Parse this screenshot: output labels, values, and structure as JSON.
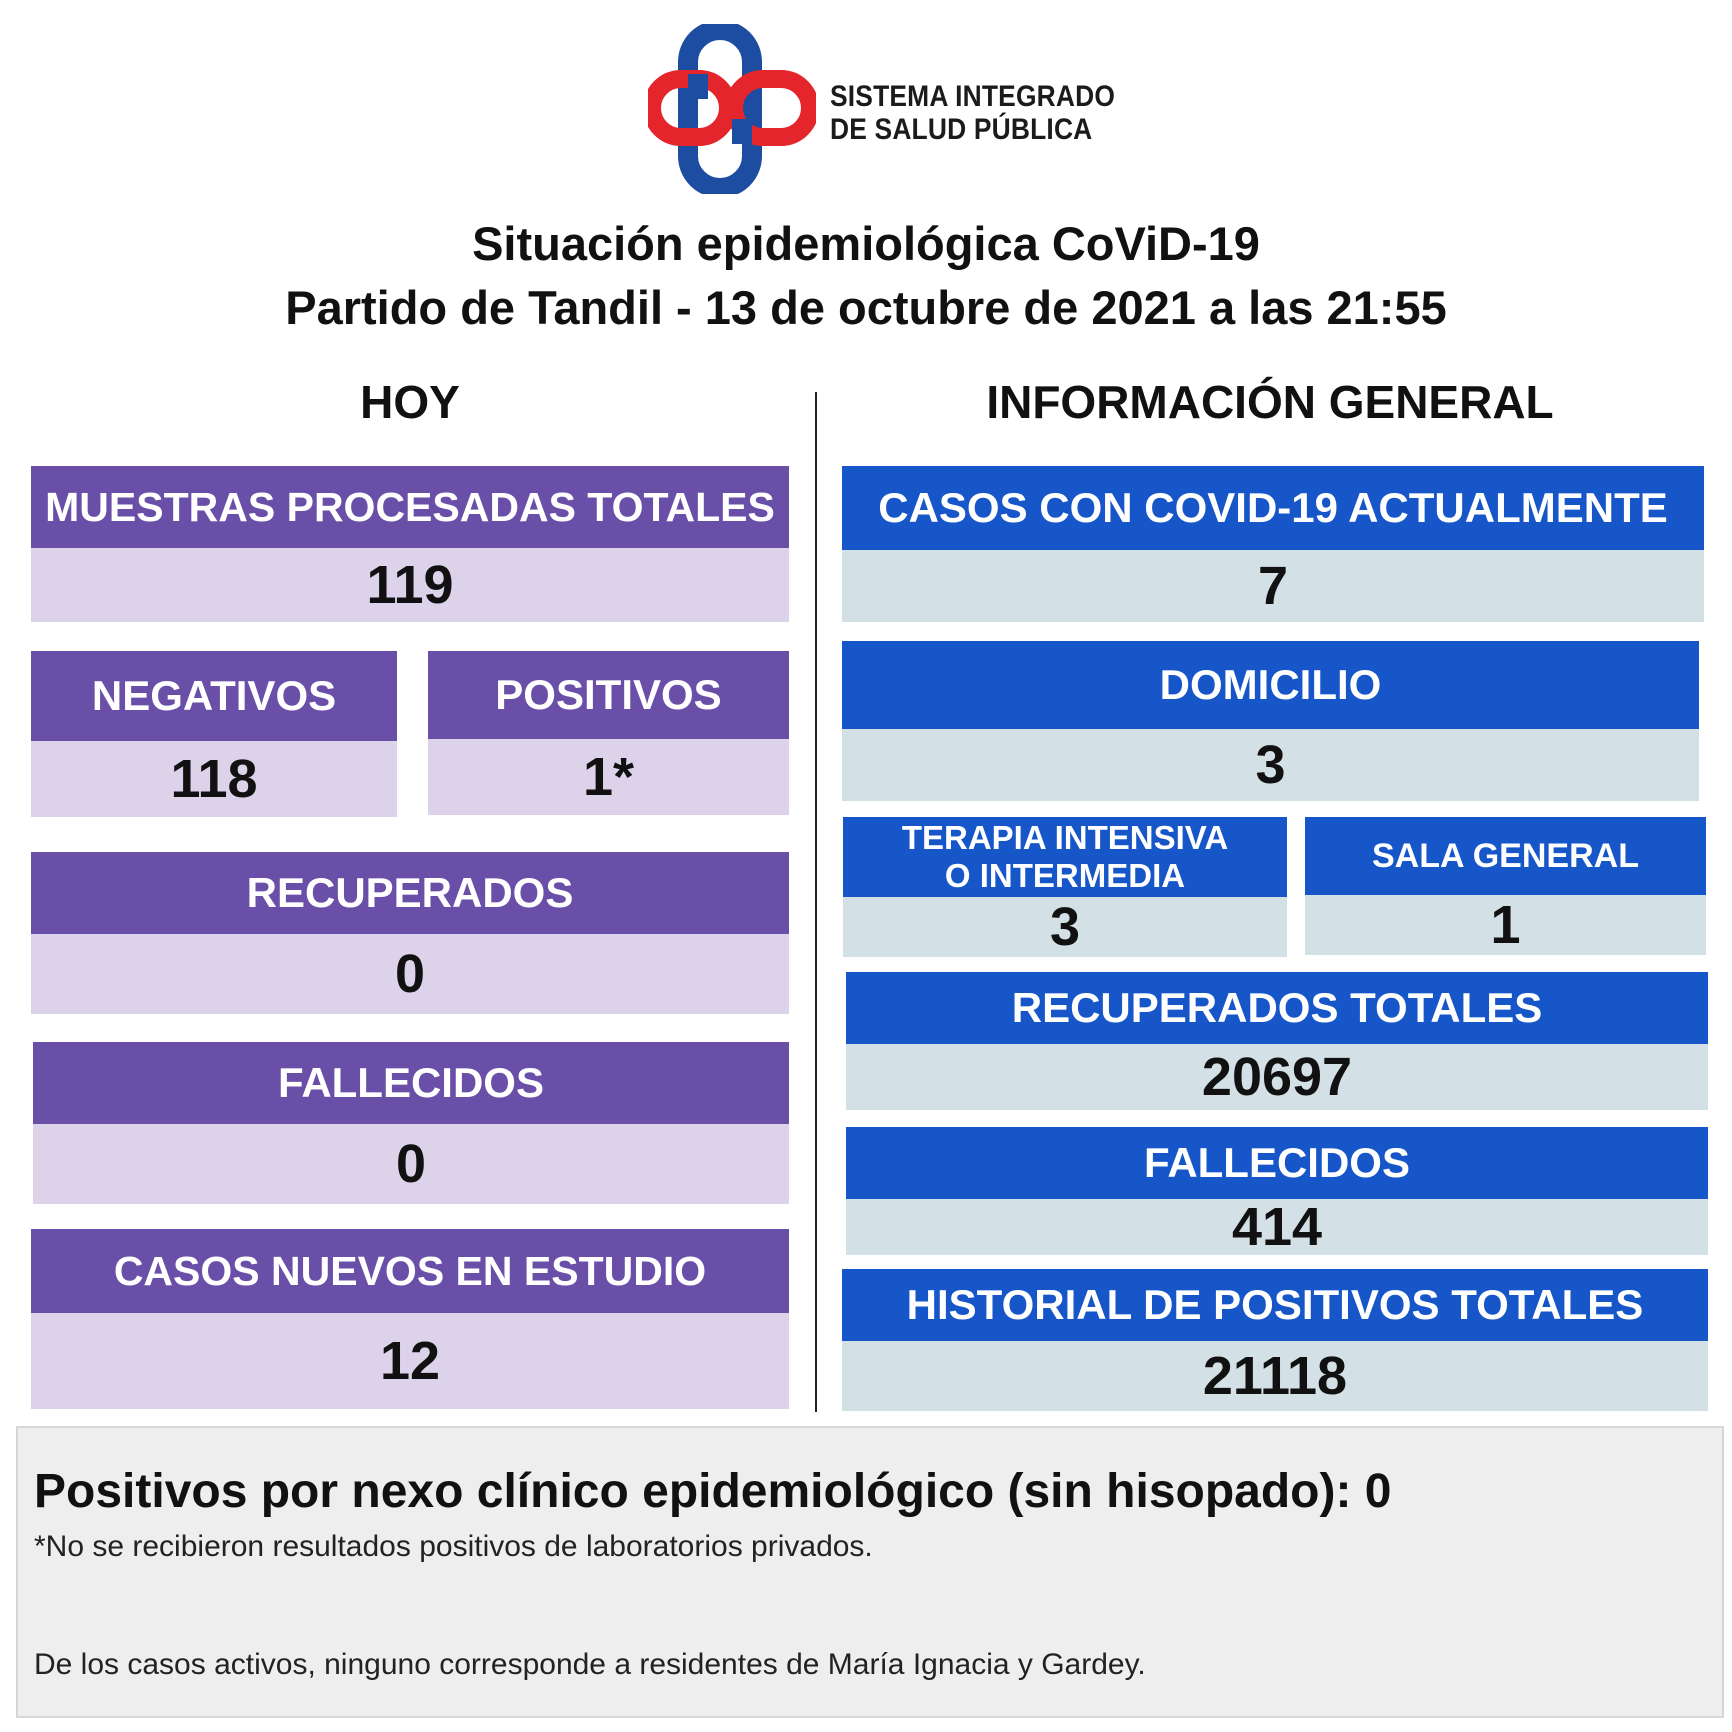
{
  "logo": {
    "icon": "sistema-integrado-cross-logo",
    "text_line1": "SISTEMA INTEGRADO",
    "text_line2": "DE SALUD PÚBLICA",
    "colors": {
      "red": "#e4262c",
      "blue": "#1c4da0"
    }
  },
  "title_line1": "Situación epidemiológica CoViD-19",
  "title_line2": "Partido de Tandil - 13 de octubre de 2021 a las 21:55",
  "hoy": {
    "heading": "HOY",
    "muestras": {
      "label": "MUESTRAS PROCESADAS TOTALES",
      "value": "119"
    },
    "negativos": {
      "label": "NEGATIVOS",
      "value": "118"
    },
    "positivos": {
      "label": "POSITIVOS",
      "value": "1*"
    },
    "recuperados": {
      "label": "RECUPERADOS",
      "value": "0"
    },
    "fallecidos": {
      "label": "FALLECIDOS",
      "value": "0"
    },
    "casos_nuevos": {
      "label": "CASOS NUEVOS EN ESTUDIO",
      "value": "12"
    }
  },
  "general": {
    "heading": "INFORMACIÓN GENERAL",
    "casos_actuales": {
      "label": "CASOS CON COVID-19 ACTUALMENTE",
      "value": "7"
    },
    "domicilio": {
      "label": "DOMICILIO",
      "value": "3"
    },
    "terapia": {
      "label_line1": "TERAPIA INTENSIVA",
      "label_line2": "O INTERMEDIA",
      "value": "3"
    },
    "sala_general": {
      "label": "SALA GENERAL",
      "value": "1"
    },
    "recuperados_totales": {
      "label": "RECUPERADOS TOTALES",
      "value": "20697"
    },
    "fallecidos": {
      "label": "FALLECIDOS",
      "value": "414"
    },
    "historial": {
      "label": "HISTORIAL DE POSITIVOS TOTALES",
      "value": "21118"
    }
  },
  "footer": {
    "main": "Positivos por nexo clínico epidemiológico (sin hisopado): 0",
    "note": "*No se recibieron resultados positivos de laboratorios privados.",
    "note2": "De los casos activos, ninguno corresponde a residentes de María Ignacia y Gardey."
  },
  "colors": {
    "purple_header": "#6a4fa8",
    "purple_value": "#dcd3eb",
    "blue_header": "#1656c8",
    "blue_value": "#d3e0e6"
  }
}
